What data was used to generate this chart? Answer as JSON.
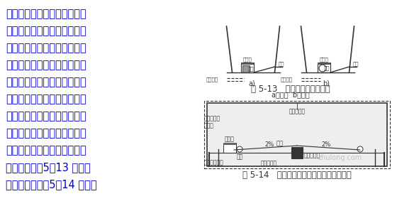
{
  "bg_color": "#ffffff",
  "left_text_lines": [
    "隧道纵向排水沟，有单侧、双",
    "侧、中心式三种形式。除地下",
    "水量不大的中、短隧道可不设",
    "中心水沟外，一般情况下都建",
    "议设置中心水沟，它除了能引",
    "排衬砌背后的地下水外，还可",
    "有效地疏导路面底部的积水。",
    "而路侧边沟的作用主要是排除",
    "路面污水，其形式有明沟与暗",
    "沟两种，如图5－13 所示。",
    "中心排水沟如图5－14 所示。"
  ],
  "text_color": "#0000cc",
  "text_fontsize": 10.5,
  "fig_caption_1": "图 5-13   公路隧道侧边沟形式",
  "fig_caption_1b": "a）暗沟  b）明沟",
  "fig_caption_2": "图 5-14   公路隧道双侧排水沟与中心排水沟",
  "diagram_color": "#333333",
  "label_fontsize": 6.5,
  "caption_fontsize": 8.5,
  "watermark": "zhulong.com"
}
